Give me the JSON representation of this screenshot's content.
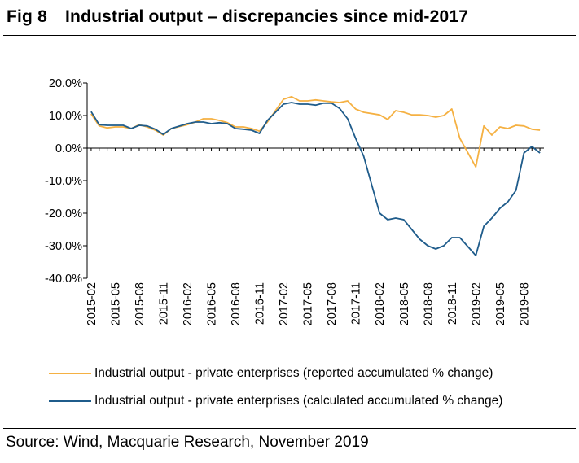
{
  "header": {
    "fig_label": "Fig 8",
    "title": "Industrial output – discrepancies since mid-2017"
  },
  "source": "Source: Wind, Macquarie Research, November 2019",
  "colors": {
    "reported": "#f5b143",
    "calculated": "#1f5c8b"
  },
  "chart_data": {
    "type": "line",
    "title": "",
    "xlabel": "",
    "ylabel": "",
    "ylim": [
      -40,
      20
    ],
    "y_ticks": [
      "20.0%",
      "10.0%",
      "0.0%",
      "-10.0%",
      "-20.0%",
      "-30.0%",
      "-40.0%"
    ],
    "y_tick_values": [
      20,
      10,
      0,
      -10,
      -20,
      -30,
      -40
    ],
    "x_tick_labels": [
      "2015-02",
      "2015-05",
      "2015-08",
      "2015-11",
      "2016-02",
      "2016-05",
      "2016-08",
      "2016-11",
      "2017-02",
      "2017-05",
      "2017-08",
      "2017-11",
      "2018-02",
      "2018-05",
      "2018-08",
      "2018-11",
      "2019-02",
      "2019-05",
      "2019-08"
    ],
    "x": [
      "2015-02",
      "2015-03",
      "2015-04",
      "2015-05",
      "2015-06",
      "2015-07",
      "2015-08",
      "2015-09",
      "2015-10",
      "2015-11",
      "2015-12",
      "2016-02",
      "2016-03",
      "2016-04",
      "2016-05",
      "2016-06",
      "2016-07",
      "2016-08",
      "2016-09",
      "2016-10",
      "2016-11",
      "2016-12",
      "2017-02",
      "2017-03",
      "2017-04",
      "2017-05",
      "2017-06",
      "2017-07",
      "2017-08",
      "2017-09",
      "2017-10",
      "2017-11",
      "2017-12",
      "2018-02",
      "2018-03",
      "2018-04",
      "2018-05",
      "2018-06",
      "2018-07",
      "2018-08",
      "2018-09",
      "2018-10",
      "2018-11",
      "2018-12",
      "2019-02",
      "2019-03",
      "2019-04",
      "2019-05",
      "2019-06",
      "2019-07",
      "2019-08",
      "2019-09",
      "2019-10"
    ],
    "legend_position": "bottom",
    "grid": false,
    "series": [
      {
        "name": "Industrial output - private enterprises (reported accumulated % change)",
        "values": [
          10.5,
          6.8,
          6.2,
          6.5,
          6.5,
          6.0,
          7.2,
          6.5,
          5.5,
          4.0,
          6.0,
          7.2,
          8.0,
          9.0,
          9.0,
          8.5,
          7.8,
          6.5,
          6.5,
          6.0,
          5.2,
          8.0,
          15.0,
          15.8,
          14.5,
          14.5,
          14.8,
          14.5,
          14.2,
          14.0,
          14.5,
          12.0,
          11.0,
          10.2,
          8.8,
          11.5,
          11.0,
          10.2,
          10.2,
          10.0,
          9.5,
          10.0,
          12.0,
          3.0,
          -5.8,
          6.8,
          4.0,
          6.5,
          6.0,
          7.0,
          6.8,
          5.8,
          5.5
        ]
      },
      {
        "name": "Industrial output - private enterprises (calculated accumulated % change)",
        "values": [
          11.2,
          7.2,
          7.0,
          7.0,
          7.0,
          6.0,
          7.0,
          6.8,
          5.8,
          4.2,
          6.0,
          7.5,
          8.0,
          8.0,
          7.5,
          7.8,
          7.5,
          6.0,
          5.8,
          5.5,
          4.5,
          8.5,
          13.5,
          14.0,
          13.5,
          13.5,
          13.2,
          13.8,
          13.8,
          12.2,
          9.0,
          3.0,
          -2.5,
          -20.0,
          -22.0,
          -21.5,
          -22.0,
          -25.0,
          -28.0,
          -30.0,
          -31.0,
          -30.0,
          -27.5,
          -27.5,
          -33.0,
          -24.0,
          -21.5,
          -18.5,
          -16.5,
          -13.0,
          -1.5,
          0.5,
          -1.5
        ]
      }
    ]
  }
}
